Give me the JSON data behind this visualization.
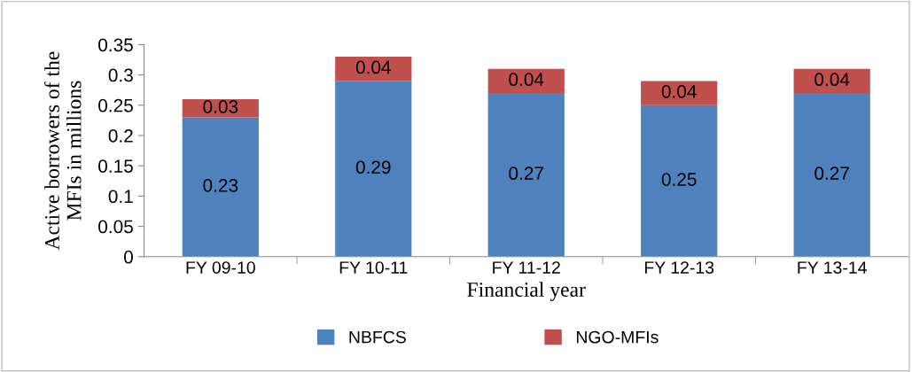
{
  "chart_data": {
    "type": "bar",
    "stacked": true,
    "xlabel": "Financial year",
    "ylabel": "Active borrowers of the\nMFIs in millions",
    "categories": [
      "FY 09-10",
      "FY 10-11",
      "FY 11-12",
      "FY 12-13",
      "FY 13-14"
    ],
    "series": [
      {
        "name": "NBFCS",
        "color": "#4f81bd",
        "values": [
          0.23,
          0.29,
          0.27,
          0.25,
          0.27
        ]
      },
      {
        "name": "NGO-MFIs",
        "color": "#c0504d",
        "values": [
          0.03,
          0.04,
          0.04,
          0.04,
          0.04
        ]
      }
    ],
    "ylim": [
      0,
      0.35
    ],
    "yticks": [
      0,
      0.05,
      0.1,
      0.15,
      0.2,
      0.25,
      0.3,
      0.35
    ],
    "grid": false,
    "legend": "bottom",
    "data_labels": true
  }
}
